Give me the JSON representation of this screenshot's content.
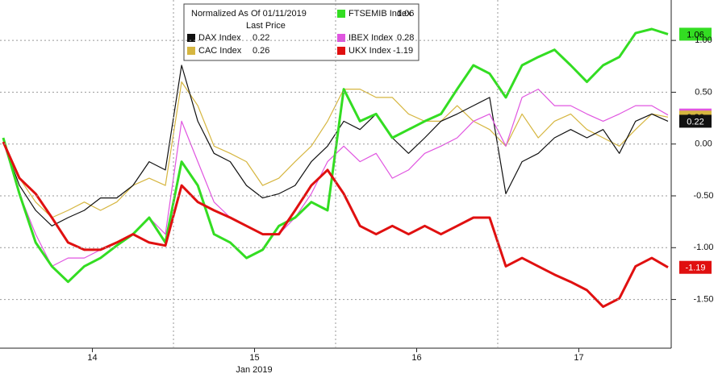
{
  "chart_data": {
    "type": "line",
    "legend_title": "Normalized As Of 01/11/2019",
    "legend_subtitle": "Last Price",
    "xlabel": "Jan 2019",
    "x": [
      13.45,
      13.55,
      13.65,
      13.75,
      13.85,
      13.95,
      14.05,
      14.15,
      14.25,
      14.35,
      14.45,
      14.55,
      14.65,
      14.75,
      14.85,
      14.95,
      15.05,
      15.15,
      15.25,
      15.35,
      15.45,
      15.55,
      15.65,
      15.75,
      15.85,
      15.95,
      16.05,
      16.15,
      16.25,
      16.35,
      16.45,
      16.55,
      16.65,
      16.75,
      16.85,
      16.95,
      17.05,
      17.15,
      17.25,
      17.35,
      17.45,
      17.55
    ],
    "xlim": [
      13.43,
      17.56
    ],
    "xticks": [
      14,
      15,
      16,
      17
    ],
    "ylim": [
      -1.97,
      1.39
    ],
    "yticks": [
      {
        "value": 1,
        "label": "1.00"
      },
      {
        "value": 0.5,
        "label": "0.50"
      },
      {
        "value": 0,
        "label": "0.00"
      },
      {
        "value": -0.5,
        "label": "-0.50"
      },
      {
        "value": -1,
        "label": "-1.00"
      },
      {
        "value": -1.5,
        "label": "-1.50"
      }
    ],
    "grid": true,
    "series": [
      {
        "name": "DAX Index",
        "color": "#111111",
        "last": 0.22,
        "values": [
          0.02,
          -0.4,
          -0.64,
          -0.79,
          -0.71,
          -0.64,
          -0.52,
          -0.52,
          -0.4,
          -0.17,
          -0.25,
          0.76,
          0.22,
          -0.09,
          -0.17,
          -0.4,
          -0.52,
          -0.48,
          -0.4,
          -0.17,
          -0.02,
          0.22,
          0.14,
          0.29,
          0.06,
          -0.09,
          0.06,
          0.22,
          0.29,
          0.37,
          0.45,
          -0.48,
          -0.17,
          -0.09,
          0.06,
          0.14,
          0.06,
          0.14,
          -0.09,
          0.22,
          0.29,
          0.22
        ]
      },
      {
        "name": "CAC Index",
        "color": "#d6b640",
        "last": 0.26,
        "values": [
          0.02,
          -0.33,
          -0.56,
          -0.71,
          -0.64,
          -0.56,
          -0.64,
          -0.56,
          -0.4,
          -0.33,
          -0.4,
          0.6,
          0.37,
          -0.02,
          -0.09,
          -0.17,
          -0.4,
          -0.33,
          -0.17,
          -0.02,
          0.22,
          0.53,
          0.53,
          0.45,
          0.45,
          0.29,
          0.22,
          0.22,
          0.37,
          0.22,
          0.14,
          -0.02,
          0.29,
          0.06,
          0.22,
          0.29,
          0.14,
          0.06,
          -0.02,
          0.14,
          0.29,
          0.26
        ]
      },
      {
        "name": "FTSEMIB Index",
        "color": "#33dd22",
        "last": 1.06,
        "values": [
          0.06,
          -0.48,
          -0.95,
          -1.18,
          -1.33,
          -1.18,
          -1.1,
          -0.98,
          -0.87,
          -0.71,
          -0.95,
          -0.17,
          -0.4,
          -0.87,
          -0.95,
          -1.1,
          -1.02,
          -0.79,
          -0.71,
          -0.56,
          -0.64,
          0.53,
          0.22,
          0.29,
          0.06,
          0.14,
          0.22,
          0.29,
          0.53,
          0.76,
          0.68,
          0.45,
          0.76,
          0.84,
          0.91,
          0.76,
          0.6,
          0.76,
          0.84,
          1.07,
          1.11,
          1.06
        ]
      },
      {
        "name": "IBEX Index",
        "color": "#e055e0",
        "last": 0.28,
        "values": [
          0.02,
          -0.48,
          -0.87,
          -1.18,
          -1.1,
          -1.1,
          -1.02,
          -0.95,
          -0.87,
          -0.71,
          -0.87,
          0.22,
          -0.17,
          -0.56,
          -0.71,
          -0.79,
          -0.87,
          -0.87,
          -0.71,
          -0.48,
          -0.17,
          -0.02,
          -0.17,
          -0.09,
          -0.33,
          -0.25,
          -0.09,
          -0.02,
          0.06,
          0.22,
          0.29,
          -0.02,
          0.45,
          0.53,
          0.37,
          0.37,
          0.29,
          0.22,
          0.29,
          0.37,
          0.37,
          0.28
        ]
      },
      {
        "name": "UKX Index",
        "color": "#e01010",
        "last": -1.19,
        "values": [
          0.02,
          -0.33,
          -0.48,
          -0.71,
          -0.95,
          -1.02,
          -1.02,
          -0.95,
          -0.87,
          -0.95,
          -0.98,
          -0.4,
          -0.56,
          -0.64,
          -0.71,
          -0.79,
          -0.87,
          -0.87,
          -0.64,
          -0.4,
          -0.25,
          -0.48,
          -0.79,
          -0.87,
          -0.79,
          -0.87,
          -0.79,
          -0.87,
          -0.79,
          -0.71,
          -0.71,
          -1.18,
          -1.1,
          -1.18,
          -1.26,
          -1.33,
          -1.41,
          -1.57,
          -1.49,
          -1.18,
          -1.1,
          -1.19
        ]
      }
    ]
  }
}
